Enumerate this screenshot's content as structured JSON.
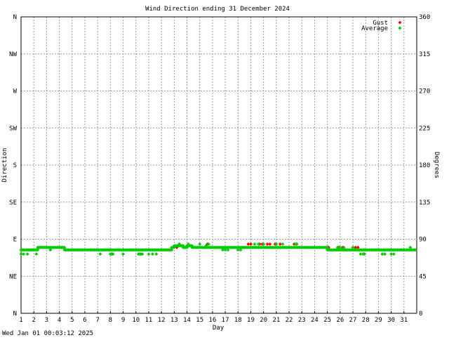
{
  "chart_data": {
    "type": "scatter",
    "title": "Wind Direction ending 31 December 2024",
    "xlabel": "Day",
    "ylabel_left": "Direction",
    "ylabel_right": "Degrees",
    "xlim": [
      1,
      32
    ],
    "ylim": [
      0,
      360
    ],
    "x_ticks": [
      1,
      2,
      3,
      4,
      5,
      6,
      7,
      8,
      9,
      10,
      11,
      12,
      13,
      14,
      15,
      16,
      17,
      18,
      19,
      20,
      21,
      22,
      23,
      24,
      25,
      26,
      27,
      28,
      29,
      30,
      31
    ],
    "y_ticks_left": [
      {
        "value": 0,
        "label": "N"
      },
      {
        "value": 45,
        "label": "NE"
      },
      {
        "value": 90,
        "label": "E"
      },
      {
        "value": 135,
        "label": "SE"
      },
      {
        "value": 180,
        "label": "S"
      },
      {
        "value": 225,
        "label": "SW"
      },
      {
        "value": 270,
        "label": "W"
      },
      {
        "value": 315,
        "label": "NW"
      },
      {
        "value": 360,
        "label": "N"
      }
    ],
    "y_ticks_right": [
      0,
      45,
      90,
      135,
      180,
      225,
      270,
      315,
      360
    ],
    "grid": true,
    "legend_position": "top-right",
    "series": [
      {
        "name": "Gust",
        "color": "#ff0000",
        "points": [
          [
            1.0,
            77
          ],
          [
            1.1,
            77
          ],
          [
            2.5,
            80
          ],
          [
            2.6,
            80
          ],
          [
            2.8,
            80
          ],
          [
            8.1,
            72
          ],
          [
            10.3,
            77
          ],
          [
            10.5,
            77
          ],
          [
            13.2,
            80
          ],
          [
            13.4,
            84
          ],
          [
            15.6,
            84
          ],
          [
            18.8,
            84
          ],
          [
            19.0,
            84
          ],
          [
            19.7,
            84
          ],
          [
            19.9,
            84
          ],
          [
            20.3,
            84
          ],
          [
            20.5,
            84
          ],
          [
            20.9,
            84
          ],
          [
            21.3,
            84
          ],
          [
            22.4,
            84
          ],
          [
            22.6,
            84
          ],
          [
            24.9,
            80
          ],
          [
            25.0,
            80
          ],
          [
            25.1,
            80
          ],
          [
            25.9,
            80
          ],
          [
            26.2,
            80
          ],
          [
            27.0,
            80
          ],
          [
            27.2,
            80
          ],
          [
            27.4,
            80
          ],
          [
            29.2,
            77
          ],
          [
            29.5,
            77
          ]
        ]
      },
      {
        "name": "Average",
        "color": "#00cc00",
        "segments": [
          [
            1.0,
            2.3,
            77
          ],
          [
            2.3,
            4.4,
            80
          ],
          [
            4.4,
            12.8,
            77
          ],
          [
            12.8,
            13.0,
            80
          ],
          [
            13.0,
            13.7,
            82
          ],
          [
            13.7,
            14.0,
            80
          ],
          [
            14.0,
            14.4,
            82
          ],
          [
            14.4,
            25.0,
            80
          ],
          [
            25.0,
            31.9,
            77
          ]
        ],
        "points": [
          [
            1.0,
            72
          ],
          [
            1.2,
            72
          ],
          [
            1.5,
            72
          ],
          [
            1.7,
            77
          ],
          [
            2.2,
            72
          ],
          [
            2.6,
            80
          ],
          [
            3.3,
            77
          ],
          [
            4.2,
            80
          ],
          [
            4.5,
            77
          ],
          [
            7.2,
            72
          ],
          [
            8.0,
            72
          ],
          [
            8.1,
            72
          ],
          [
            8.2,
            72
          ],
          [
            9.0,
            72
          ],
          [
            10.2,
            72
          ],
          [
            10.3,
            72
          ],
          [
            10.4,
            72
          ],
          [
            10.5,
            72
          ],
          [
            11.0,
            72
          ],
          [
            11.3,
            72
          ],
          [
            11.6,
            72
          ],
          [
            13.2,
            82
          ],
          [
            13.4,
            84
          ],
          [
            13.6,
            82
          ],
          [
            14.1,
            84
          ],
          [
            14.3,
            82
          ],
          [
            15.0,
            84
          ],
          [
            15.5,
            82
          ],
          [
            15.7,
            84
          ],
          [
            16.8,
            77
          ],
          [
            17.0,
            77
          ],
          [
            17.2,
            77
          ],
          [
            18.0,
            77
          ],
          [
            18.2,
            77
          ],
          [
            19.3,
            84
          ],
          [
            19.6,
            84
          ],
          [
            20.0,
            84
          ],
          [
            21.0,
            84
          ],
          [
            21.1,
            80
          ],
          [
            21.5,
            84
          ],
          [
            22.5,
            84
          ],
          [
            22.6,
            84
          ],
          [
            25.8,
            80
          ],
          [
            26.0,
            80
          ],
          [
            26.3,
            80
          ],
          [
            27.0,
            80
          ],
          [
            27.6,
            72
          ],
          [
            27.8,
            72
          ],
          [
            27.9,
            72
          ],
          [
            29.0,
            77
          ],
          [
            29.3,
            72
          ],
          [
            29.5,
            72
          ],
          [
            29.8,
            77
          ],
          [
            30.0,
            72
          ],
          [
            30.2,
            72
          ],
          [
            31.5,
            80
          ]
        ]
      }
    ],
    "timestamp": "Wed Jan 01 00:03:12 2025"
  }
}
